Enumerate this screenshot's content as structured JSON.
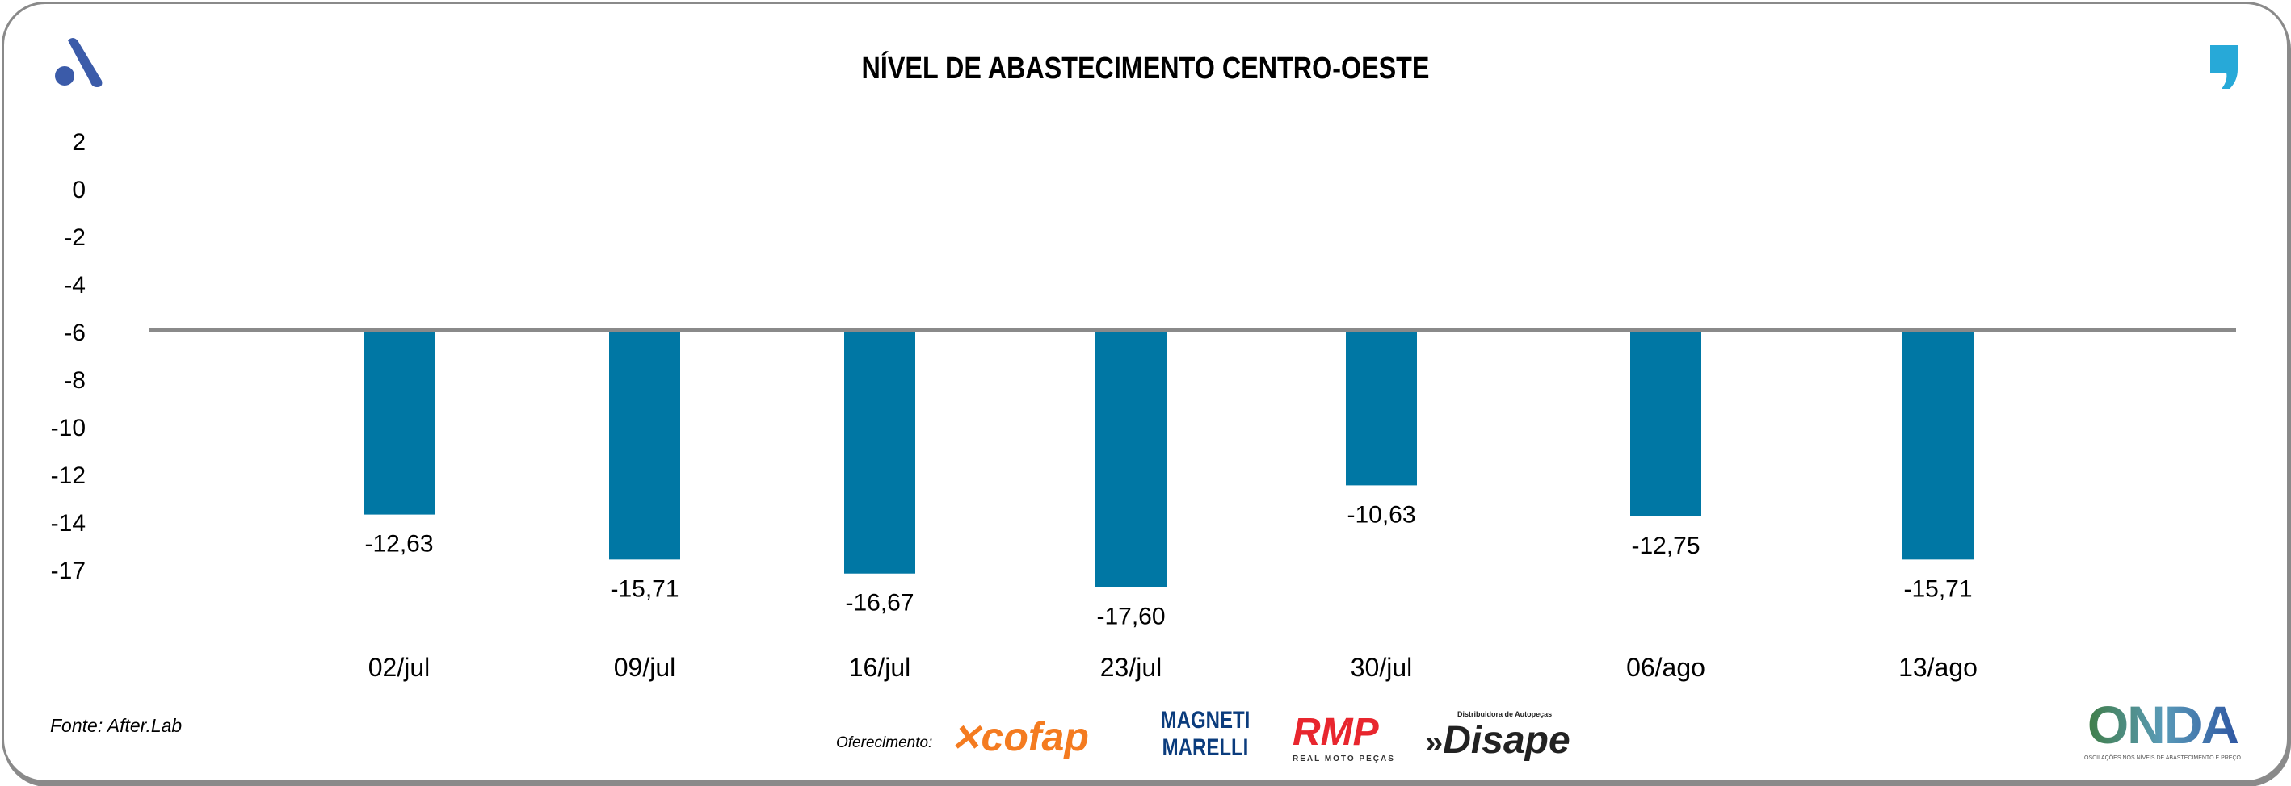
{
  "title": "NÍVEL DE ABASTECIMENTO CENTRO-OESTE",
  "source": "Fonte: After.Lab",
  "sponsor_label": "Oferecimento:",
  "sponsors": [
    "cofap",
    "MAGNETI MARELLI",
    "RMP",
    "Disape"
  ],
  "sponsor_subtexts": {
    "rmp": "REAL MOTO PEÇAS",
    "disape": "Distribuidora de Autopeças"
  },
  "brand_logo": "ONDA",
  "brand_tagline": "OSCILAÇÕES NOS NÍVEIS DE ABASTECIMENTO E PREÇO",
  "colors": {
    "bar": "#0077A4",
    "baseline": "#8a8a8a",
    "logo_left": "#3B5BA9",
    "logo_right": "#27A9D8"
  },
  "chart_data": {
    "type": "bar",
    "title": "NÍVEL DE ABASTECIMENTO CENTRO-OESTE",
    "categories": [
      "02/jul",
      "09/jul",
      "16/jul",
      "23/jul",
      "30/jul",
      "06/ago",
      "13/ago"
    ],
    "values": [
      -12.63,
      -15.71,
      -16.67,
      -17.6,
      -10.63,
      -12.75,
      -15.71
    ],
    "value_labels": [
      "-12,63",
      "-15,71",
      "-16,67",
      "-17,60",
      "-10,63",
      "-12,75",
      "-15,71"
    ],
    "y_tick_labels": [
      "2",
      "0",
      "-2",
      "-4",
      "-6",
      "-8",
      "-10",
      "-12",
      "-14",
      "-17"
    ],
    "baseline_label": "-6",
    "xlabel": "",
    "ylabel": "",
    "grid": false,
    "legend": "none"
  }
}
